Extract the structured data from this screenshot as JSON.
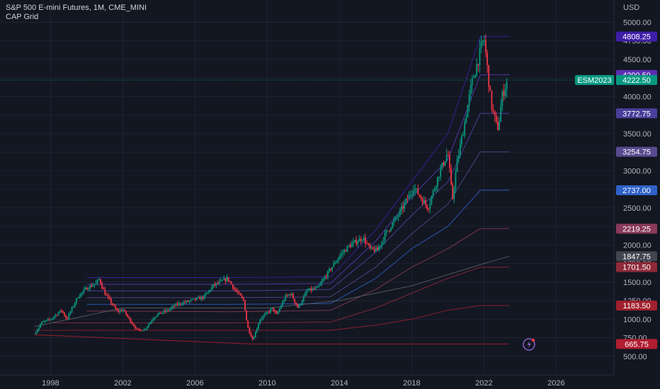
{
  "legend": {
    "symbol_line": "S&P 500 E-mini Futures, 1M, CME_MINI",
    "indicator_line": "CAP Grid"
  },
  "chart_data": {
    "type": "candlestick",
    "currency_label": "USD",
    "x_ticks": [
      "1998",
      "2002",
      "2006",
      "2010",
      "2014",
      "2018",
      "2022",
      "2026"
    ],
    "y_ticks": [
      500,
      750,
      1000,
      1250,
      1500,
      1750,
      2000,
      2250,
      2500,
      2750,
      3000,
      3250,
      3500,
      3750,
      4000,
      4250,
      4500,
      4750,
      5000
    ],
    "y_ticks_display": [
      "500.00",
      "750.00",
      "1000.00",
      "1250.00",
      "1500.00",
      "1750.00",
      "2000.00",
      "2250.00",
      "2500.00",
      "2750.00",
      "3000.00",
      "3250.00",
      "3500.00",
      "3750.00",
      "4000.00",
      "4250.00",
      "4500.00",
      "4750.00",
      "5000.00"
    ],
    "ylim": [
      250,
      5300
    ],
    "xlim": [
      1995.2,
      2029.2
    ],
    "grid": true,
    "last_price": {
      "label": "ESM2023",
      "value": 4222.5,
      "display": "4222.50",
      "color": "#089981"
    },
    "price_tags": [
      {
        "value": 4808.25,
        "display": "4808.25",
        "color": "#3d1ea8"
      },
      {
        "value": 4290.5,
        "display": "4290.50",
        "color": "#5b2db0"
      },
      {
        "value": 3772.75,
        "display": "3772.75",
        "color": "#4a3f9a"
      },
      {
        "value": 3254.75,
        "display": "3254.75",
        "color": "#5a4a8f"
      },
      {
        "value": 2737.0,
        "display": "2737.00",
        "color": "#2f62c9"
      },
      {
        "value": 2219.25,
        "display": "2219.25",
        "color": "#8a3a5a"
      },
      {
        "value": 1847.75,
        "display": "1847.75",
        "color": "#434651"
      },
      {
        "value": 1701.5,
        "display": "1701.50",
        "color": "#8f2a38"
      },
      {
        "value": 1183.5,
        "display": "1183.50",
        "color": "#a1202e"
      },
      {
        "value": 665.75,
        "display": "665.75",
        "color": "#b01e2f"
      }
    ],
    "price_path": [
      [
        1997.1,
        800
      ],
      [
        1997.5,
        950
      ],
      [
        1998.0,
        1000
      ],
      [
        1998.6,
        1120
      ],
      [
        1998.9,
        1000
      ],
      [
        1999.5,
        1300
      ],
      [
        2000.0,
        1420
      ],
      [
        2000.5,
        1480
      ],
      [
        2000.7,
        1540
      ],
      [
        2001.0,
        1350
      ],
      [
        2001.7,
        1100
      ],
      [
        2002.0,
        1130
      ],
      [
        2002.5,
        950
      ],
      [
        2002.8,
        850
      ],
      [
        2003.2,
        860
      ],
      [
        2003.8,
        1050
      ],
      [
        2004.5,
        1120
      ],
      [
        2005.0,
        1200
      ],
      [
        2005.8,
        1250
      ],
      [
        2006.5,
        1300
      ],
      [
        2007.0,
        1450
      ],
      [
        2007.8,
        1550
      ],
      [
        2008.2,
        1400
      ],
      [
        2008.7,
        1250
      ],
      [
        2008.9,
        900
      ],
      [
        2009.2,
        720
      ],
      [
        2009.6,
        1000
      ],
      [
        2010.3,
        1150
      ],
      [
        2010.5,
        1050
      ],
      [
        2011.0,
        1300
      ],
      [
        2011.3,
        1350
      ],
      [
        2011.7,
        1150
      ],
      [
        2012.2,
        1380
      ],
      [
        2012.8,
        1420
      ],
      [
        2013.4,
        1640
      ],
      [
        2014.0,
        1850
      ],
      [
        2014.5,
        1980
      ],
      [
        2015.3,
        2100
      ],
      [
        2015.7,
        1940
      ],
      [
        2016.1,
        1930
      ],
      [
        2016.6,
        2170
      ],
      [
        2017.2,
        2380
      ],
      [
        2017.9,
        2680
      ],
      [
        2018.1,
        2780
      ],
      [
        2018.9,
        2500
      ],
      [
        2019.5,
        2950
      ],
      [
        2020.0,
        3250
      ],
      [
        2020.25,
        2600
      ],
      [
        2020.5,
        3100
      ],
      [
        2020.9,
        3600
      ],
      [
        2021.3,
        4150
      ],
      [
        2021.9,
        4700
      ],
      [
        2022.0,
        4800
      ],
      [
        2022.4,
        3900
      ],
      [
        2022.7,
        3600
      ],
      [
        2022.8,
        3580
      ],
      [
        2023.0,
        4000
      ],
      [
        2023.3,
        4222.5
      ]
    ],
    "grid_levels": [
      {
        "color": "#3d1ea8",
        "path": [
          [
            2000.0,
            1560
          ],
          [
            2008.0,
            1560
          ],
          [
            2013.5,
            1570
          ],
          [
            2016.0,
            2200
          ],
          [
            2018.0,
            2850
          ],
          [
            2020.0,
            3500
          ],
          [
            2021.8,
            4808.25
          ],
          [
            2023.4,
            4808.25
          ]
        ]
      },
      {
        "color": "#5b3ab8",
        "path": [
          [
            2000.0,
            1470
          ],
          [
            2008.0,
            1470
          ],
          [
            2013.5,
            1480
          ],
          [
            2016.0,
            2050
          ],
          [
            2018.0,
            2650
          ],
          [
            2020.0,
            3150
          ],
          [
            2021.8,
            4290.5
          ],
          [
            2023.4,
            4290.5
          ]
        ]
      },
      {
        "color": "#4e4aa8",
        "path": [
          [
            2000.0,
            1380
          ],
          [
            2008.0,
            1380
          ],
          [
            2013.5,
            1400
          ],
          [
            2016.0,
            1900
          ],
          [
            2018.0,
            2400
          ],
          [
            2020.0,
            2850
          ],
          [
            2021.8,
            3772.75
          ],
          [
            2023.4,
            3772.75
          ]
        ]
      },
      {
        "color": "#5a4a8f",
        "path": [
          [
            2000.0,
            1290
          ],
          [
            2008.0,
            1290
          ],
          [
            2013.5,
            1300
          ],
          [
            2016.0,
            1700
          ],
          [
            2018.0,
            2150
          ],
          [
            2020.0,
            2550
          ],
          [
            2021.8,
            3254.75
          ],
          [
            2023.4,
            3254.75
          ]
        ]
      },
      {
        "color": "#2f62c9",
        "path": [
          [
            2000.0,
            1200
          ],
          [
            2008.0,
            1200
          ],
          [
            2013.5,
            1210
          ],
          [
            2016.0,
            1550
          ],
          [
            2018.0,
            1950
          ],
          [
            2020.0,
            2250
          ],
          [
            2021.8,
            2737.0
          ],
          [
            2023.4,
            2737.0
          ]
        ]
      },
      {
        "color": "#8a3a5a",
        "path": [
          [
            2000.0,
            1110
          ],
          [
            2008.0,
            1100
          ],
          [
            2013.5,
            1120
          ],
          [
            2016.0,
            1400
          ],
          [
            2018.0,
            1700
          ],
          [
            2020.0,
            1950
          ],
          [
            2021.8,
            2219.25
          ],
          [
            2023.4,
            2219.25
          ]
        ]
      },
      {
        "color": "#8f2a38",
        "path": [
          [
            1998.0,
            950
          ],
          [
            2002.0,
            950
          ],
          [
            2008.0,
            950
          ],
          [
            2013.5,
            960
          ],
          [
            2016.0,
            1150
          ],
          [
            2018.0,
            1350
          ],
          [
            2020.0,
            1550
          ],
          [
            2021.8,
            1701.5
          ],
          [
            2023.4,
            1701.5
          ]
        ]
      },
      {
        "color": "#a1202e",
        "path": [
          [
            1997.1,
            850
          ],
          [
            2008.0,
            850
          ],
          [
            2009.2,
            850
          ],
          [
            2013.5,
            850
          ],
          [
            2016.0,
            920
          ],
          [
            2018.0,
            1000
          ],
          [
            2020.0,
            1120
          ],
          [
            2021.8,
            1183.5
          ],
          [
            2023.4,
            1183.5
          ]
        ]
      },
      {
        "color": "#b01e2f",
        "path": [
          [
            1997.1,
            790
          ],
          [
            2009.2,
            665.75
          ],
          [
            2023.4,
            665.75
          ]
        ]
      },
      {
        "color": "#5d606b",
        "path": [
          [
            1997.1,
            900
          ],
          [
            2002.0,
            1150
          ],
          [
            2006.0,
            1150
          ],
          [
            2010.0,
            1150
          ],
          [
            2014.0,
            1250
          ],
          [
            2018.0,
            1450
          ],
          [
            2022.0,
            1750
          ],
          [
            2023.4,
            1847.75
          ]
        ]
      }
    ]
  }
}
